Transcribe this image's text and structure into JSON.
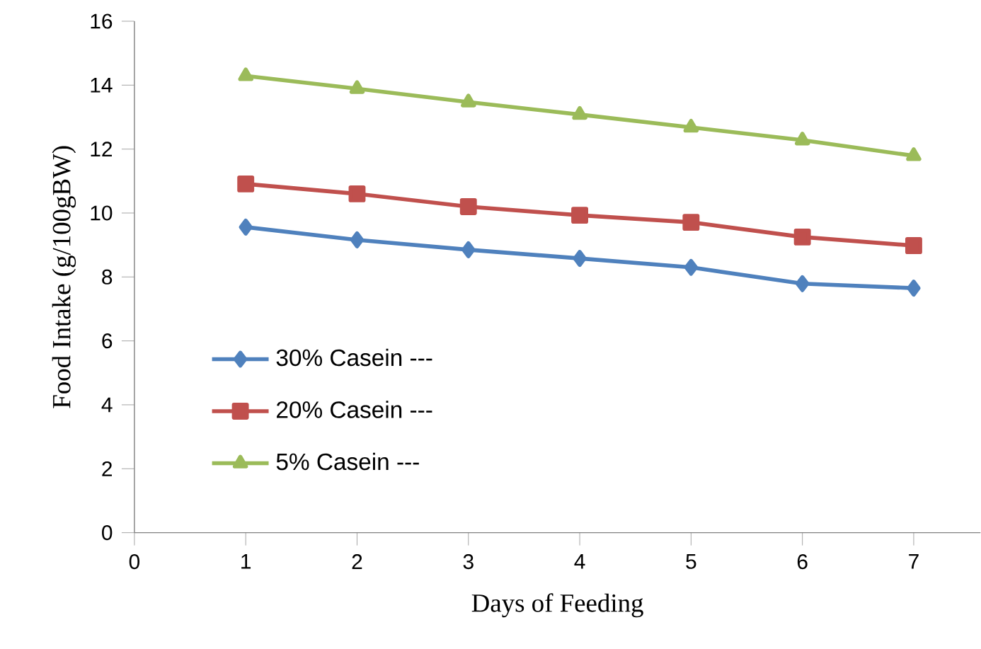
{
  "chart_data": {
    "type": "line",
    "xlabel": "Days of Feeding",
    "ylabel": "Food Intake (g/100gBW)",
    "x": [
      1,
      2,
      3,
      4,
      5,
      6,
      7
    ],
    "series": [
      {
        "name": "30% Casein ---",
        "color": "#4f81bd",
        "marker": "diamond",
        "values": [
          9.56,
          9.16,
          8.85,
          8.58,
          8.3,
          7.79,
          7.65
        ]
      },
      {
        "name": "20% Casein ---",
        "color": "#c0504d",
        "marker": "square",
        "values": [
          10.91,
          10.6,
          10.2,
          9.93,
          9.71,
          9.25,
          8.98
        ]
      },
      {
        "name": "5% Casein ---",
        "color": "#9bbb59",
        "marker": "triangle",
        "values": [
          14.29,
          13.89,
          13.47,
          13.08,
          12.68,
          12.28,
          11.79
        ]
      }
    ],
    "xlim": [
      0,
      7.6
    ],
    "ylim": [
      0,
      16
    ],
    "xticks": [
      0,
      1,
      2,
      3,
      4,
      5,
      6,
      7
    ],
    "yticks": [
      0,
      2,
      4,
      6,
      8,
      10,
      12,
      14,
      16
    ],
    "legend": "left"
  }
}
